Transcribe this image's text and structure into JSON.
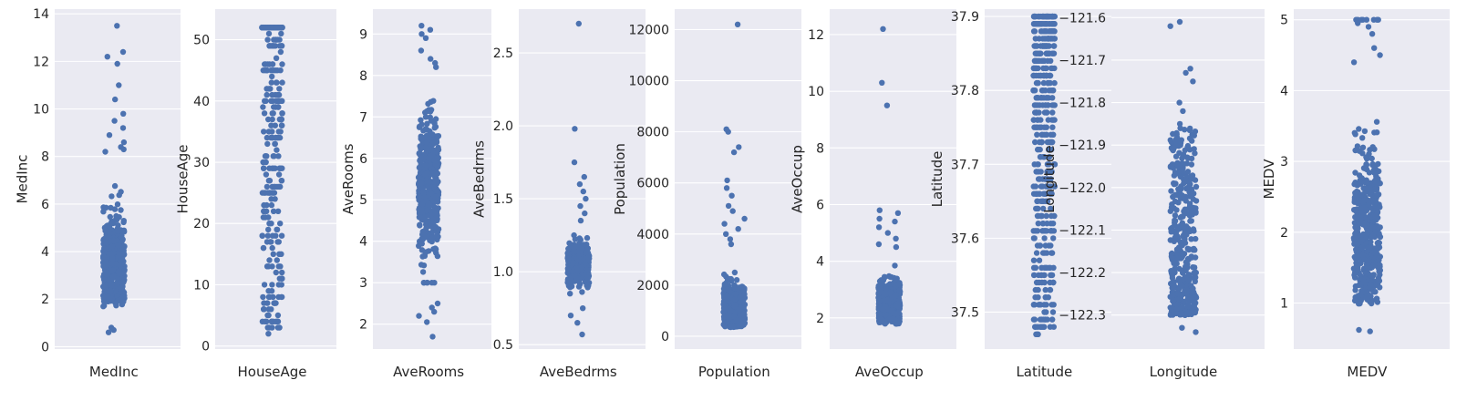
{
  "chart_data": [
    {
      "type": "scatter",
      "subtype": "strip",
      "xlabel": "MedInc",
      "ylabel": "MedInc",
      "ylim": [
        -0.1,
        14.2
      ],
      "yticks": [
        0,
        2,
        4,
        6,
        8,
        10,
        12,
        14
      ],
      "ytick_labels": [
        "0",
        "2",
        "4",
        "6",
        "8",
        "10",
        "12",
        "14"
      ],
      "color": "#4c72b0",
      "background": "#eaeaf2",
      "grid": true,
      "dist": {
        "n": 420,
        "core": [
          1.0,
          7.5
        ],
        "mode": "skew",
        "outliers": [
          13.5,
          12.4,
          12.2,
          11.9,
          11.0,
          10.4,
          9.8,
          9.5,
          9.2,
          8.9,
          8.6,
          8.4,
          8.3,
          8.2,
          0.6,
          0.7,
          0.8
        ]
      }
    },
    {
      "type": "scatter",
      "subtype": "strip",
      "xlabel": "HouseAge",
      "ylabel": "HouseAge",
      "ylim": [
        -0.5,
        55
      ],
      "yticks": [
        0,
        10,
        20,
        30,
        40,
        50
      ],
      "ytick_labels": [
        "0",
        "10",
        "20",
        "30",
        "40",
        "50"
      ],
      "color": "#4c72b0",
      "background": "#eaeaf2",
      "grid": true,
      "dist": {
        "n": 330,
        "core": [
          2,
          52
        ],
        "mode": "integer-uniform",
        "outliers": []
      }
    },
    {
      "type": "scatter",
      "subtype": "strip",
      "xlabel": "AveRooms",
      "ylabel": "AveRooms",
      "ylim": [
        1.4,
        9.6
      ],
      "yticks": [
        2,
        3,
        4,
        5,
        6,
        7,
        8,
        9
      ],
      "ytick_labels": [
        "2",
        "3",
        "4",
        "5",
        "6",
        "7",
        "8",
        "9"
      ],
      "color": "#4c72b0",
      "background": "#eaeaf2",
      "grid": true,
      "dist": {
        "n": 420,
        "core": [
          3.0,
          7.7
        ],
        "mode": "normal",
        "outliers": [
          9.2,
          9.1,
          9.0,
          8.9,
          8.6,
          8.4,
          8.3,
          8.2,
          2.5,
          2.4,
          2.3,
          2.2,
          2.05,
          1.7
        ]
      }
    },
    {
      "type": "scatter",
      "subtype": "strip",
      "xlabel": "AveBedrms",
      "ylabel": "AveBedrms",
      "ylim": [
        0.47,
        2.8
      ],
      "yticks": [
        0.5,
        1.0,
        1.5,
        2.0,
        2.5
      ],
      "ytick_labels": [
        "0.5",
        "1.0",
        "1.5",
        "2.0",
        "2.5"
      ],
      "color": "#4c72b0",
      "background": "#eaeaf2",
      "grid": true,
      "dist": {
        "n": 380,
        "core": [
          0.85,
          1.25
        ],
        "mode": "normal",
        "outliers": [
          2.7,
          1.98,
          1.75,
          1.65,
          1.6,
          1.55,
          1.5,
          1.45,
          1.4,
          1.35,
          0.75,
          0.7,
          0.65,
          0.57
        ]
      }
    },
    {
      "type": "scatter",
      "subtype": "strip",
      "xlabel": "Population",
      "ylabel": "Population",
      "ylim": [
        -500,
        12800
      ],
      "yticks": [
        0,
        2000,
        4000,
        6000,
        8000,
        10000,
        12000
      ],
      "ytick_labels": [
        "0",
        "2000",
        "4000",
        "6000",
        "8000",
        "10000",
        "12000"
      ],
      "color": "#4c72b0",
      "background": "#eaeaf2",
      "grid": true,
      "dist": {
        "n": 420,
        "core": [
          50,
          3000
        ],
        "mode": "skew",
        "outliers": [
          12200,
          8100,
          8000,
          7400,
          7200,
          6100,
          5800,
          5500,
          5100,
          4900,
          4600,
          4400,
          4200,
          4000,
          3800,
          3600
        ]
      }
    },
    {
      "type": "scatter",
      "subtype": "strip",
      "xlabel": "AveOccup",
      "ylabel": "AveOccup",
      "ylim": [
        0.9,
        12.9
      ],
      "yticks": [
        2,
        4,
        6,
        8,
        10,
        12
      ],
      "ytick_labels": [
        "2",
        "4",
        "6",
        "8",
        "10",
        "12"
      ],
      "color": "#4c72b0",
      "background": "#eaeaf2",
      "grid": true,
      "dist": {
        "n": 420,
        "core": [
          1.5,
          4.2
        ],
        "mode": "skew",
        "outliers": [
          12.2,
          10.3,
          9.5,
          5.8,
          5.7,
          5.5,
          5.4,
          5.2,
          5.0,
          4.8,
          4.6,
          4.5
        ]
      }
    },
    {
      "type": "scatter",
      "subtype": "strip",
      "xlabel": "Latitude",
      "ylabel": "Latitude",
      "ylim": [
        37.45,
        37.91
      ],
      "yticks": [
        37.5,
        37.6,
        37.7,
        37.8,
        37.9
      ],
      "ytick_labels": [
        "37.5",
        "37.6",
        "37.7",
        "37.8",
        "37.9"
      ],
      "color": "#4c72b0",
      "background": "#eaeaf2",
      "grid": true,
      "dist": {
        "n": 480,
        "core": [
          37.47,
          37.9
        ],
        "mode": "banded-upper",
        "outliers": []
      }
    },
    {
      "type": "scatter",
      "subtype": "strip",
      "xlabel": "Longitude",
      "ylabel": "Longitude",
      "ylim": [
        -122.38,
        -121.58
      ],
      "yticks": [
        -121.6,
        -121.7,
        -121.8,
        -121.9,
        -122.0,
        -122.1,
        -122.2,
        -122.3
      ],
      "ytick_labels": [
        "−121.6",
        "−121.7",
        "−121.8",
        "−121.9",
        "−122.0",
        "−122.1",
        "−122.2",
        "−122.3"
      ],
      "color": "#4c72b0",
      "background": "#eaeaf2",
      "grid": true,
      "dist": {
        "n": 400,
        "core": [
          -122.3,
          -121.86
        ],
        "mode": "skew-down",
        "outliers": [
          -121.61,
          -121.62,
          -121.72,
          -121.73,
          -121.75,
          -121.8,
          -121.82,
          -121.85,
          -122.33,
          -122.34
        ]
      }
    },
    {
      "type": "scatter",
      "subtype": "strip",
      "xlabel": "MEDV",
      "ylabel": "MEDV",
      "ylim": [
        0.35,
        5.15
      ],
      "yticks": [
        1,
        2,
        3,
        4,
        5
      ],
      "ytick_labels": [
        "1",
        "2",
        "3",
        "4",
        "5"
      ],
      "color": "#4c72b0",
      "background": "#eaeaf2",
      "grid": true,
      "dist": {
        "n": 440,
        "core": [
          0.6,
          4.4
        ],
        "mode": "skew",
        "outliers": [
          5.0,
          5.0,
          5.0,
          5.0,
          5.0,
          5.0,
          5.0,
          5.0,
          4.95,
          4.9,
          4.8,
          4.6,
          4.5,
          4.4,
          0.6,
          0.62
        ]
      }
    }
  ]
}
